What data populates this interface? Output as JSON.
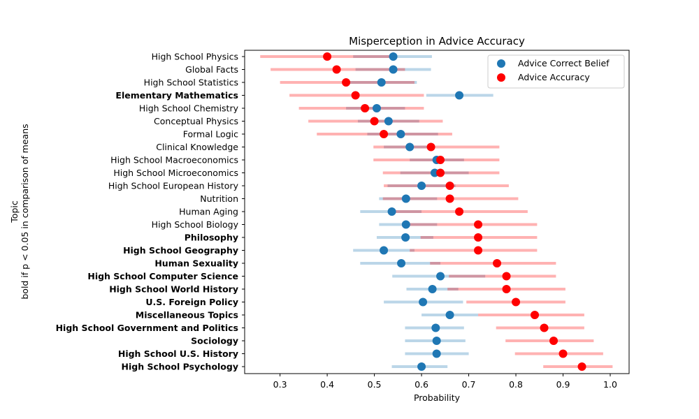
{
  "chart_data": {
    "type": "scatter",
    "title": "Misperception in Advice Accuracy",
    "xlabel": "Probability",
    "ylabel_lines": [
      "Topic",
      "bold if p < 0.05 in comparison of means"
    ],
    "xlim": [
      0.225,
      1.04
    ],
    "xticks": [
      0.3,
      0.4,
      0.5,
      0.6,
      0.7,
      0.8,
      0.9,
      1.0
    ],
    "xtick_labels": [
      "0.3",
      "0.4",
      "0.5",
      "0.6",
      "0.7",
      "0.8",
      "0.9",
      "1.0"
    ],
    "legend_position": "top-right",
    "colors": {
      "belief": "#1f77b4",
      "accuracy": "#ff0000",
      "belief_ci": "#1f77b4",
      "accuracy_ci": "#ff0000"
    },
    "series": [
      {
        "key": "belief",
        "name": "Advice Correct Belief"
      },
      {
        "key": "accuracy",
        "name": "Advice Accuracy"
      }
    ],
    "topics": [
      {
        "label": "High School Physics",
        "bold": false,
        "belief": 0.54,
        "belief_ci": [
          0.455,
          0.622
        ],
        "accuracy": 0.4,
        "accuracy_ci": [
          0.258,
          0.545
        ]
      },
      {
        "label": "Global Facts",
        "bold": false,
        "belief": 0.54,
        "belief_ci": [
          0.46,
          0.62
        ],
        "accuracy": 0.42,
        "accuracy_ci": [
          0.28,
          0.565
        ]
      },
      {
        "label": "High School Statistics",
        "bold": false,
        "belief": 0.515,
        "belief_ci": [
          0.44,
          0.59
        ],
        "accuracy": 0.44,
        "accuracy_ci": [
          0.3,
          0.585
        ]
      },
      {
        "label": "Elementary Mathematics",
        "bold": true,
        "belief": 0.68,
        "belief_ci": [
          0.61,
          0.752
        ],
        "accuracy": 0.46,
        "accuracy_ci": [
          0.32,
          0.605
        ]
      },
      {
        "label": "High School Chemistry",
        "bold": false,
        "belief": 0.505,
        "belief_ci": [
          0.44,
          0.565
        ],
        "accuracy": 0.48,
        "accuracy_ci": [
          0.34,
          0.605
        ]
      },
      {
        "label": "Conceptual Physics",
        "bold": false,
        "belief": 0.53,
        "belief_ci": [
          0.465,
          0.595
        ],
        "accuracy": 0.5,
        "accuracy_ci": [
          0.36,
          0.645
        ]
      },
      {
        "label": "Formal Logic",
        "bold": false,
        "belief": 0.556,
        "belief_ci": [
          0.485,
          0.635
        ],
        "accuracy": 0.52,
        "accuracy_ci": [
          0.378,
          0.665
        ]
      },
      {
        "label": "Clinical Knowledge",
        "bold": false,
        "belief": 0.575,
        "belief_ci": [
          0.52,
          0.628
        ],
        "accuracy": 0.62,
        "accuracy_ci": [
          0.498,
          0.765
        ]
      },
      {
        "label": "High School Macroeconomics",
        "bold": false,
        "belief": 0.632,
        "belief_ci": [
          0.575,
          0.69
        ],
        "accuracy": 0.64,
        "accuracy_ci": [
          0.498,
          0.765
        ]
      },
      {
        "label": "High School Microeconomics",
        "bold": false,
        "belief": 0.628,
        "belief_ci": [
          0.555,
          0.7
        ],
        "accuracy": 0.64,
        "accuracy_ci": [
          0.518,
          0.765
        ]
      },
      {
        "label": "High School European History",
        "bold": false,
        "belief": 0.6,
        "belief_ci": [
          0.528,
          0.672
        ],
        "accuracy": 0.66,
        "accuracy_ci": [
          0.52,
          0.785
        ]
      },
      {
        "label": "Nutrition",
        "bold": false,
        "belief": 0.567,
        "belief_ci": [
          0.51,
          0.633
        ],
        "accuracy": 0.66,
        "accuracy_ci": [
          0.518,
          0.805
        ]
      },
      {
        "label": "Human Aging",
        "bold": false,
        "belief": 0.537,
        "belief_ci": [
          0.47,
          0.6
        ],
        "accuracy": 0.68,
        "accuracy_ci": [
          0.537,
          0.825
        ]
      },
      {
        "label": "High School Biology",
        "bold": false,
        "belief": 0.567,
        "belief_ci": [
          0.51,
          0.633
        ],
        "accuracy": 0.72,
        "accuracy_ci": [
          0.575,
          0.845
        ]
      },
      {
        "label": "Philosophy",
        "bold": true,
        "belief": 0.566,
        "belief_ci": [
          0.505,
          0.625
        ],
        "accuracy": 0.72,
        "accuracy_ci": [
          0.598,
          0.845
        ]
      },
      {
        "label": "High School Geography",
        "bold": true,
        "belief": 0.52,
        "belief_ci": [
          0.455,
          0.585
        ],
        "accuracy": 0.72,
        "accuracy_ci": [
          0.575,
          0.845
        ]
      },
      {
        "label": "Human Sexuality",
        "bold": true,
        "belief": 0.557,
        "belief_ci": [
          0.47,
          0.64
        ],
        "accuracy": 0.76,
        "accuracy_ci": [
          0.618,
          0.885
        ]
      },
      {
        "label": "High School Computer Science",
        "bold": true,
        "belief": 0.64,
        "belief_ci": [
          0.538,
          0.735
        ],
        "accuracy": 0.78,
        "accuracy_ci": [
          0.658,
          0.885
        ]
      },
      {
        "label": "High School World History",
        "bold": true,
        "belief": 0.623,
        "belief_ci": [
          0.568,
          0.678
        ],
        "accuracy": 0.78,
        "accuracy_ci": [
          0.655,
          0.905
        ]
      },
      {
        "label": "U.S. Foreign Policy",
        "bold": true,
        "belief": 0.603,
        "belief_ci": [
          0.52,
          0.688
        ],
        "accuracy": 0.8,
        "accuracy_ci": [
          0.695,
          0.905
        ]
      },
      {
        "label": "Miscellaneous Topics",
        "bold": true,
        "belief": 0.66,
        "belief_ci": [
          0.6,
          0.72
        ],
        "accuracy": 0.84,
        "accuracy_ci": [
          0.72,
          0.945
        ]
      },
      {
        "label": "High School Government and Politics",
        "bold": true,
        "belief": 0.63,
        "belief_ci": [
          0.565,
          0.69
        ],
        "accuracy": 0.86,
        "accuracy_ci": [
          0.758,
          0.945
        ]
      },
      {
        "label": "Sociology",
        "bold": true,
        "belief": 0.632,
        "belief_ci": [
          0.565,
          0.693
        ],
        "accuracy": 0.88,
        "accuracy_ci": [
          0.778,
          0.965
        ]
      },
      {
        "label": "High School U.S. History",
        "bold": true,
        "belief": 0.632,
        "belief_ci": [
          0.565,
          0.7
        ],
        "accuracy": 0.9,
        "accuracy_ci": [
          0.798,
          0.985
        ]
      },
      {
        "label": "High School Psychology",
        "bold": true,
        "belief": 0.6,
        "belief_ci": [
          0.537,
          0.655
        ],
        "accuracy": 0.94,
        "accuracy_ci": [
          0.858,
          1.005
        ]
      }
    ]
  }
}
